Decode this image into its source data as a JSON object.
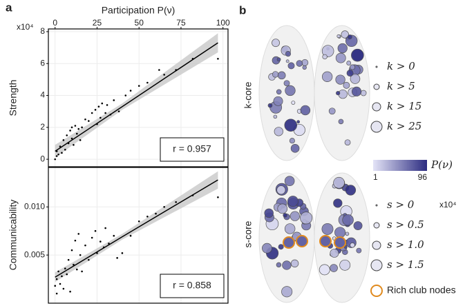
{
  "chart_data": [
    {
      "type": "scatter",
      "xlabel": "Participation P(ν)",
      "ylabel": "Strength",
      "y_offset_label": "x10⁴",
      "xlim": [
        -4,
        103
      ],
      "ylim": [
        -0.47,
        8.17
      ],
      "xticks": [
        0,
        25,
        50,
        75,
        100
      ],
      "yticks": [
        0,
        2,
        4,
        6,
        8
      ],
      "grid": true,
      "x": [
        0,
        1,
        1,
        2,
        3,
        4,
        5,
        6,
        7,
        8,
        9,
        10,
        10,
        11,
        12,
        13,
        14,
        15,
        16,
        18,
        20,
        22,
        24,
        25,
        26,
        27,
        28,
        30,
        31,
        33,
        35,
        38,
        42,
        45,
        50,
        55,
        62,
        65,
        72,
        82,
        97
      ],
      "y": [
        0,
        0.2,
        0.5,
        0.3,
        0.8,
        0.4,
        1.2,
        0.6,
        1.5,
        1.0,
        1.8,
        2.0,
        1.3,
        0.9,
        2.1,
        1.6,
        1.9,
        1.2,
        2.0,
        2.5,
        2.4,
        2.9,
        3.1,
        2.2,
        3.3,
        2.6,
        3.5,
        2.9,
        3.4,
        2.8,
        3.7,
        3.0,
        4.0,
        4.3,
        4.6,
        4.8,
        5.6,
        5.3,
        5.6,
        6.3,
        6.3
      ],
      "color": "#000000",
      "fit": {
        "x": [
          0,
          40,
          97
        ],
        "y": [
          0.5,
          3.3,
          7.3
        ],
        "lower": [
          0.1,
          3.1,
          6.7
        ],
        "upper": [
          0.9,
          3.5,
          7.9
        ]
      },
      "annotation": "r = 0.957"
    },
    {
      "type": "scatter",
      "ylabel": "Communicability",
      "sharex": true,
      "xlim": [
        -4,
        103
      ],
      "ylim": [
        0,
        0.0141
      ],
      "yticks": [
        0.005,
        {
          "value": 0.01,
          "label": "0.010"
        }
      ],
      "grid": true,
      "x": [
        0,
        1,
        1,
        2,
        3,
        4,
        5,
        6,
        7,
        8,
        9,
        10,
        11,
        12,
        13,
        14,
        15,
        16,
        18,
        20,
        22,
        24,
        25,
        27,
        29,
        30,
        32,
        35,
        37,
        40,
        45,
        50,
        55,
        60,
        65,
        72,
        82,
        97
      ],
      "y": [
        0.0018,
        0.0025,
        0.001,
        0.0033,
        0.002,
        0.0028,
        0.0015,
        0.0036,
        0.003,
        0.0045,
        0.0012,
        0.0055,
        0.004,
        0.0065,
        0.0035,
        0.0072,
        0.005,
        0.0033,
        0.006,
        0.0045,
        0.0068,
        0.0075,
        0.0052,
        0.0064,
        0.0058,
        0.0078,
        0.0062,
        0.007,
        0.0047,
        0.0052,
        0.007,
        0.0085,
        0.009,
        0.0093,
        0.01,
        0.0105,
        0.0112,
        0.011
      ],
      "color": "#000000",
      "fit": {
        "x": [
          0,
          40,
          97
        ],
        "y": [
          0.0027,
          0.0069,
          0.0128
        ],
        "lower": [
          0.0022,
          0.0066,
          0.0119
        ],
        "upper": [
          0.0032,
          0.0072,
          0.0137
        ]
      },
      "annotation": "r = 0.858"
    }
  ],
  "panel_a": {
    "label": "a"
  },
  "panel_b": {
    "label": "b",
    "k_label": "k-core",
    "s_label": "s-core",
    "k_legend": [
      "k > 0",
      "k > 5",
      "k > 15",
      "k > 25"
    ],
    "s_legend": [
      "s > 0",
      "s > 0.5",
      "s > 1.0",
      "s > 1.5"
    ],
    "s_unit": "x10⁴",
    "colorbar": {
      "title": "P(ν)",
      "min": 1,
      "max": 96
    },
    "rich_club": "Rich club nodes"
  }
}
